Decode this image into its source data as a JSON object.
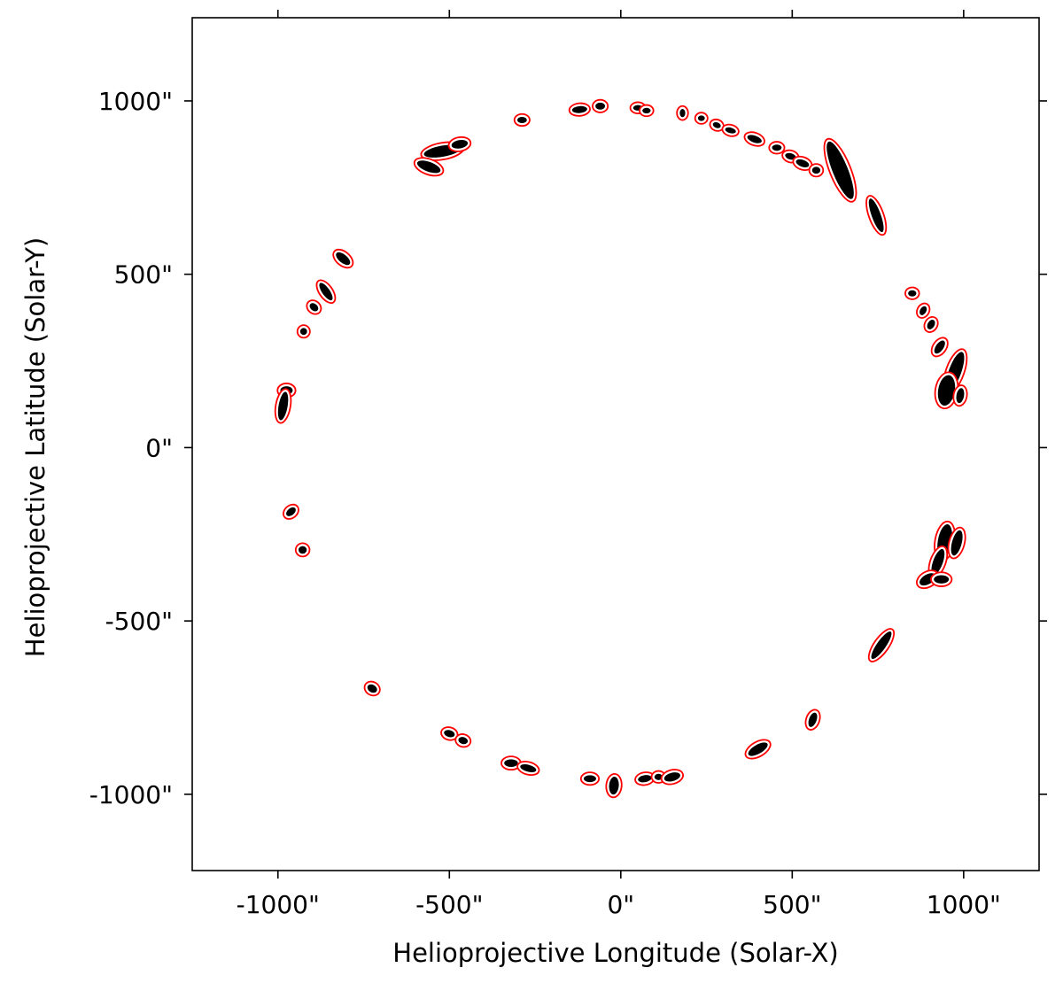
{
  "chart_data": {
    "type": "scatter",
    "title": "",
    "xlabel": "Helioprojective Longitude (Solar-X)",
    "ylabel": "Helioprojective Latitude (Solar-Y)",
    "xlim": [
      -1250,
      1220
    ],
    "ylim": [
      -1220,
      1240
    ],
    "unit": "arcsec",
    "x_ticks": [
      -1000,
      -500,
      0,
      500,
      1000
    ],
    "x_tick_labels": [
      "-1000\"",
      "-500\"",
      "0\"",
      "500\"",
      "1000\""
    ],
    "y_ticks": [
      1000,
      500,
      0,
      -500,
      -1000
    ],
    "y_tick_labels": [
      "1000\"",
      "500\"",
      "0\"",
      "-500\"",
      "-1000\""
    ],
    "grid": false,
    "legend": "none",
    "colors": {
      "fill": "#000000",
      "contour": "#ff0000",
      "axes": "#000000"
    },
    "regions": [
      {
        "x": -288,
        "y": 945,
        "rx": 14,
        "ry": 9,
        "angle": 0
      },
      {
        "x": -120,
        "y": 975,
        "rx": 22,
        "ry": 10,
        "angle": 5
      },
      {
        "x": -60,
        "y": 985,
        "rx": 14,
        "ry": 10,
        "angle": 0
      },
      {
        "x": 50,
        "y": 980,
        "rx": 14,
        "ry": 8,
        "angle": 0
      },
      {
        "x": 75,
        "y": 972,
        "rx": 12,
        "ry": 8,
        "angle": 0
      },
      {
        "x": 180,
        "y": 965,
        "rx": 8,
        "ry": 12,
        "angle": 0
      },
      {
        "x": 235,
        "y": 950,
        "rx": 10,
        "ry": 8,
        "angle": 0
      },
      {
        "x": 280,
        "y": 930,
        "rx": 12,
        "ry": 8,
        "angle": -20
      },
      {
        "x": 320,
        "y": 915,
        "rx": 16,
        "ry": 8,
        "angle": -15
      },
      {
        "x": 390,
        "y": 890,
        "rx": 22,
        "ry": 10,
        "angle": -20
      },
      {
        "x": 455,
        "y": 865,
        "rx": 14,
        "ry": 9,
        "angle": 0
      },
      {
        "x": 495,
        "y": 840,
        "rx": 16,
        "ry": 9,
        "angle": -15
      },
      {
        "x": 530,
        "y": 820,
        "rx": 20,
        "ry": 10,
        "angle": -20
      },
      {
        "x": 570,
        "y": 800,
        "rx": 12,
        "ry": 10,
        "angle": 0
      },
      {
        "x": 640,
        "y": 800,
        "rx": 90,
        "ry": 22,
        "angle": -68
      },
      {
        "x": 745,
        "y": 670,
        "rx": 52,
        "ry": 13,
        "angle": -70
      },
      {
        "x": -520,
        "y": 855,
        "rx": 55,
        "ry": 16,
        "angle": 10
      },
      {
        "x": -560,
        "y": 810,
        "rx": 36,
        "ry": 14,
        "angle": -20
      },
      {
        "x": -470,
        "y": 875,
        "rx": 24,
        "ry": 12,
        "angle": 10
      },
      {
        "x": -810,
        "y": 545,
        "rx": 25,
        "ry": 12,
        "angle": -40
      },
      {
        "x": -860,
        "y": 450,
        "rx": 30,
        "ry": 11,
        "angle": -55
      },
      {
        "x": -895,
        "y": 405,
        "rx": 14,
        "ry": 10,
        "angle": -40
      },
      {
        "x": -925,
        "y": 335,
        "rx": 10,
        "ry": 10,
        "angle": 0
      },
      {
        "x": -975,
        "y": 165,
        "rx": 18,
        "ry": 12,
        "angle": 0
      },
      {
        "x": -985,
        "y": 120,
        "rx": 42,
        "ry": 13,
        "angle": 80
      },
      {
        "x": -962,
        "y": -185,
        "rx": 16,
        "ry": 10,
        "angle": 40
      },
      {
        "x": -928,
        "y": -295,
        "rx": 12,
        "ry": 11,
        "angle": 0
      },
      {
        "x": -725,
        "y": -695,
        "rx": 15,
        "ry": 11,
        "angle": -30
      },
      {
        "x": -500,
        "y": -825,
        "rx": 16,
        "ry": 10,
        "angle": -15
      },
      {
        "x": -460,
        "y": -845,
        "rx": 14,
        "ry": 10,
        "angle": -15
      },
      {
        "x": -320,
        "y": -910,
        "rx": 20,
        "ry": 11,
        "angle": 0
      },
      {
        "x": -270,
        "y": -925,
        "rx": 24,
        "ry": 10,
        "angle": -15
      },
      {
        "x": -90,
        "y": -955,
        "rx": 18,
        "ry": 10,
        "angle": 0
      },
      {
        "x": -20,
        "y": -975,
        "rx": 26,
        "ry": 14,
        "angle": 85
      },
      {
        "x": 70,
        "y": -955,
        "rx": 20,
        "ry": 10,
        "angle": 10
      },
      {
        "x": 110,
        "y": -950,
        "rx": 12,
        "ry": 9,
        "angle": 0
      },
      {
        "x": 150,
        "y": -950,
        "rx": 24,
        "ry": 12,
        "angle": 15
      },
      {
        "x": 400,
        "y": -870,
        "rx": 32,
        "ry": 13,
        "angle": 30
      },
      {
        "x": 560,
        "y": -785,
        "rx": 22,
        "ry": 11,
        "angle": 70
      },
      {
        "x": 760,
        "y": -570,
        "rx": 48,
        "ry": 13,
        "angle": 55
      },
      {
        "x": 850,
        "y": 445,
        "rx": 12,
        "ry": 9,
        "angle": 0
      },
      {
        "x": 882,
        "y": 395,
        "rx": 14,
        "ry": 9,
        "angle": 60
      },
      {
        "x": 905,
        "y": 355,
        "rx": 15,
        "ry": 10,
        "angle": 60
      },
      {
        "x": 930,
        "y": 290,
        "rx": 22,
        "ry": 11,
        "angle": 55
      },
      {
        "x": 975,
        "y": 220,
        "rx": 60,
        "ry": 18,
        "angle": 70
      },
      {
        "x": 950,
        "y": 165,
        "rx": 45,
        "ry": 24,
        "angle": 80
      },
      {
        "x": 990,
        "y": 150,
        "rx": 22,
        "ry": 11,
        "angle": 80
      },
      {
        "x": 945,
        "y": -270,
        "rx": 50,
        "ry": 20,
        "angle": 80
      },
      {
        "x": 980,
        "y": -275,
        "rx": 38,
        "ry": 14,
        "angle": 75
      },
      {
        "x": 925,
        "y": -330,
        "rx": 40,
        "ry": 14,
        "angle": 70
      },
      {
        "x": 895,
        "y": -380,
        "rx": 26,
        "ry": 14,
        "angle": 30
      },
      {
        "x": 935,
        "y": -380,
        "rx": 22,
        "ry": 12,
        "angle": 0
      }
    ]
  }
}
